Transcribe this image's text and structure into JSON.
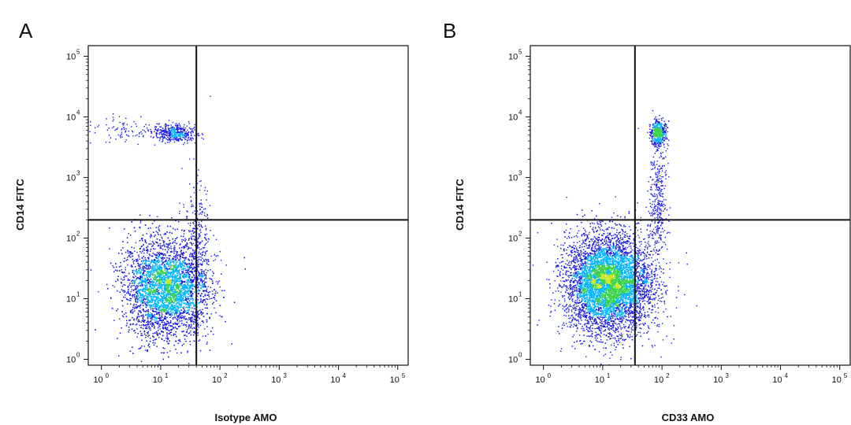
{
  "chart_data": [
    {
      "type": "scatter",
      "panel_label": "A",
      "xlabel": "Isotype AMO",
      "ylabel": "CD14 FITC",
      "x_scale": "log",
      "y_scale": "log",
      "xlim": [
        0.6,
        150000
      ],
      "ylim": [
        0.8,
        150000
      ],
      "x_ticks": [
        {
          "value": 1,
          "base": "10",
          "exp": "0"
        },
        {
          "value": 10,
          "base": "10",
          "exp": "1"
        },
        {
          "value": 100,
          "base": "10",
          "exp": "2"
        },
        {
          "value": 1000,
          "base": "10",
          "exp": "3"
        },
        {
          "value": 10000,
          "base": "10",
          "exp": "4"
        },
        {
          "value": 100000,
          "base": "10",
          "exp": "5"
        }
      ],
      "y_ticks": [
        {
          "value": 1,
          "base": "10",
          "exp": "0"
        },
        {
          "value": 10,
          "base": "10",
          "exp": "1"
        },
        {
          "value": 100,
          "base": "10",
          "exp": "2"
        },
        {
          "value": 1000,
          "base": "10",
          "exp": "3"
        },
        {
          "value": 10000,
          "base": "10",
          "exp": "4"
        },
        {
          "value": 100000,
          "base": "10",
          "exp": "5"
        }
      ],
      "quadrant_gate": {
        "x": 40,
        "y": 200
      },
      "populations": [
        {
          "center": [
            12,
            15
          ],
          "count": 7000,
          "spread": [
            0.35,
            0.4
          ]
        },
        {
          "center": [
            18,
            5500
          ],
          "count": 420,
          "spread": [
            0.16,
            0.07
          ]
        },
        {
          "center": [
            3,
            6000
          ],
          "count": 110,
          "spread": [
            0.4,
            0.1
          ]
        },
        {
          "center": [
            40,
            60
          ],
          "count": 350,
          "spread": [
            0.12,
            0.6
          ]
        }
      ]
    },
    {
      "type": "scatter",
      "panel_label": "B",
      "xlabel": "CD33 AMO",
      "ylabel": "CD14 FITC",
      "x_scale": "log",
      "y_scale": "log",
      "xlim": [
        0.6,
        150000
      ],
      "ylim": [
        0.8,
        150000
      ],
      "x_ticks": [
        {
          "value": 1,
          "base": "10",
          "exp": "0"
        },
        {
          "value": 10,
          "base": "10",
          "exp": "1"
        },
        {
          "value": 100,
          "base": "10",
          "exp": "2"
        },
        {
          "value": 1000,
          "base": "10",
          "exp": "3"
        },
        {
          "value": 10000,
          "base": "10",
          "exp": "4"
        },
        {
          "value": 100000,
          "base": "10",
          "exp": "5"
        }
      ],
      "y_ticks": [
        {
          "value": 1,
          "base": "10",
          "exp": "0"
        },
        {
          "value": 10,
          "base": "10",
          "exp": "1"
        },
        {
          "value": 100,
          "base": "10",
          "exp": "2"
        },
        {
          "value": 1000,
          "base": "10",
          "exp": "3"
        },
        {
          "value": 10000,
          "base": "10",
          "exp": "4"
        },
        {
          "value": 100000,
          "base": "10",
          "exp": "5"
        }
      ],
      "quadrant_gate": {
        "x": 35,
        "y": 200
      },
      "populations": [
        {
          "center": [
            12,
            18
          ],
          "count": 8000,
          "spread": [
            0.35,
            0.4
          ]
        },
        {
          "center": [
            85,
            5500
          ],
          "count": 480,
          "spread": [
            0.07,
            0.1
          ]
        },
        {
          "center": [
            85,
            500
          ],
          "count": 320,
          "spread": [
            0.07,
            0.45
          ]
        },
        {
          "center": [
            60,
            30
          ],
          "count": 180,
          "spread": [
            0.2,
            0.6
          ]
        }
      ]
    }
  ],
  "colors": {
    "low_density": "#1a1ae6",
    "mid_density": "#00b4ff",
    "high_density": "#3ad24a",
    "peak_density": "#c8e61e",
    "axis": "#111111"
  }
}
